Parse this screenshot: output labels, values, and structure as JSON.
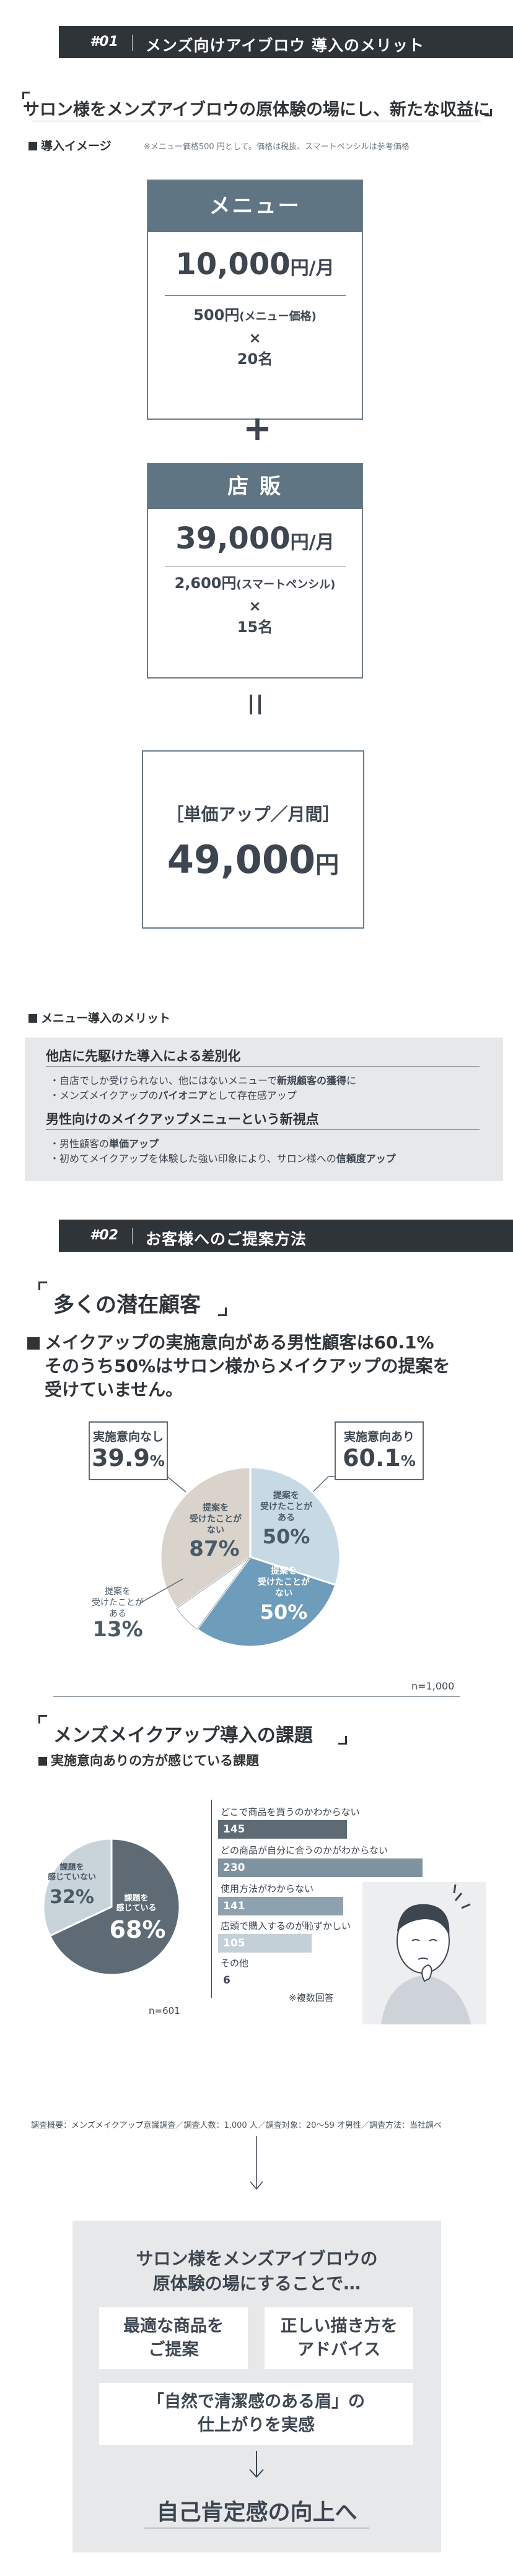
{
  "section1": {
    "num": "#01",
    "title": "メンズ向けアイブロウ 導入のメリット",
    "lead": "サロン様をメンズアイブロウの原体験の場にし、新たな収益に",
    "image_label": "導入イメージ",
    "image_note": "※メニュー価格500 円として。価格は税抜、スマートペンシルは参考価格",
    "menu_box": {
      "head": "メニュー",
      "amount": "10,000",
      "unit": "円/月",
      "line1": "500円",
      "line1_small": "(メニュー価格)",
      "times": "×",
      "line2": "20名"
    },
    "plus": "+",
    "store_box": {
      "head": "店 販",
      "amount": "39,000",
      "unit": "円/月",
      "line1": "2,600円",
      "line1_small": "(スマートペンシル)",
      "times": "×",
      "line2": "15名"
    },
    "equals": "=",
    "result": {
      "sub": "［単価アップ／月間］",
      "amount": "49,000",
      "unit": "円"
    },
    "merit_label": "メニュー導入のメリット",
    "merit": {
      "h1": "他店に先駆けた導入による差別化",
      "t1a": "・自店でしか受けられない、他にはないメニューで",
      "t1a_b": "新規顧客の獲得",
      "t1a_c": "に",
      "t1b": "・メンズメイクアップの",
      "t1b_b": "パイオニア",
      "t1b_c": "として存在感アップ",
      "h2": "男性向けのメイクアップメニューという新視点",
      "t2a": "・男性顧客の",
      "t2a_b": "単価アップ",
      "t2b": "・初めてメイクアップを体験した強い印象により、サロン様への",
      "t2b_b": "信頼度アップ"
    }
  },
  "section2": {
    "num": "#02",
    "title": "お客様へのご提案方法",
    "frame_title": "多くの潜在顧客",
    "headline1": "メイクアップの実施意向がある男性顧客は60.1%",
    "headline2": "そのうち50%はサロン様からメイクアップの提案を",
    "headline3": "受けていません。",
    "callout_no": {
      "label": "実施意向なし",
      "value": "39.9",
      "unit": "%"
    },
    "callout_yes": {
      "label": "実施意向あり",
      "value": "60.1",
      "unit": "%"
    },
    "n1": "n=1,000",
    "frame_title2": "メンズメイクアップ導入の課題",
    "sub_label": "実施意向ありの方が感じている課題",
    "n2": "n=601",
    "multi": "※複数回答",
    "survey": "調査概要：メンズメイクアップ意識調査／調査人数：1,000 人／調査対象：20～59 才男性／調査方法：当社調べ",
    "arrow": "↓"
  },
  "chart_data": [
    {
      "type": "pie",
      "slices": [
        {
          "label": "提案を受けたことがある",
          "value": 50,
          "group": "実施意向あり"
        },
        {
          "label": "提案を受けたことがない",
          "value": 50,
          "group": "実施意向あり"
        },
        {
          "label": "提案を受けたことがない",
          "value": 87,
          "group": "実施意向なし"
        },
        {
          "label": "提案を受けたことがある",
          "value": 13,
          "group": "実施意向なし"
        }
      ],
      "outer": [
        {
          "label": "実施意向あり",
          "value": 60.1
        },
        {
          "label": "実施意向なし",
          "value": 39.9
        }
      ],
      "labels": {
        "yes_has": [
          "提案を",
          "受けたことが",
          "ある"
        ],
        "yes_has_v": "50",
        "yes_not": [
          "提案を",
          "受けたことが",
          "ない"
        ],
        "yes_not_v": "50",
        "no_not": [
          "提案を",
          "受けたことが",
          "ない"
        ],
        "no_not_v": "87",
        "no_has": [
          "提案を",
          "受けたことが",
          "ある"
        ],
        "no_has_v": "13",
        "pct": "%"
      }
    },
    {
      "type": "pie",
      "slices": [
        {
          "label": "課題を感じている",
          "value": 68
        },
        {
          "label": "課題を感じていない",
          "value": 32
        }
      ],
      "labels": {
        "feel": [
          "課題を",
          "感じている"
        ],
        "feel_v": "68",
        "nofeel": [
          "課題を",
          "感じていない"
        ],
        "nofeel_v": "32",
        "pct": "%"
      }
    },
    {
      "type": "bar",
      "orientation": "horizontal",
      "categories": [
        "どこで商品を買うのかわからない",
        "どの商品が自分に合うのかがわからない",
        "使用方法がわからない",
        "店頭で購入するのが恥ずかしい",
        "その他"
      ],
      "values": [
        145,
        230,
        141,
        105,
        6
      ],
      "colors": [
        "#5e6b74",
        "#7e939f",
        "#8da2ae",
        "#c4d0d8",
        "#ffffff"
      ]
    }
  ],
  "cta": {
    "intro1": "サロン様をメンズアイブロウの",
    "intro2": "原体験の場にすることで…",
    "card1a": "最適な商品を",
    "card1b": "ご提案",
    "card2a": "正しい描き方を",
    "card2b": "アドバイス",
    "card3a": "「自然で清潔感のある眉」の",
    "card3b": "仕上がりを実感",
    "arrow": "↓",
    "final": "自己肯定感の向上へ"
  },
  "colors": {
    "dark": "#2f3438",
    "slate": "#5f7584",
    "blue": "#6e9dbb",
    "lightblue": "#c8d9e6",
    "beige": "#d9d3cc",
    "panel": "#e6e8ea"
  }
}
